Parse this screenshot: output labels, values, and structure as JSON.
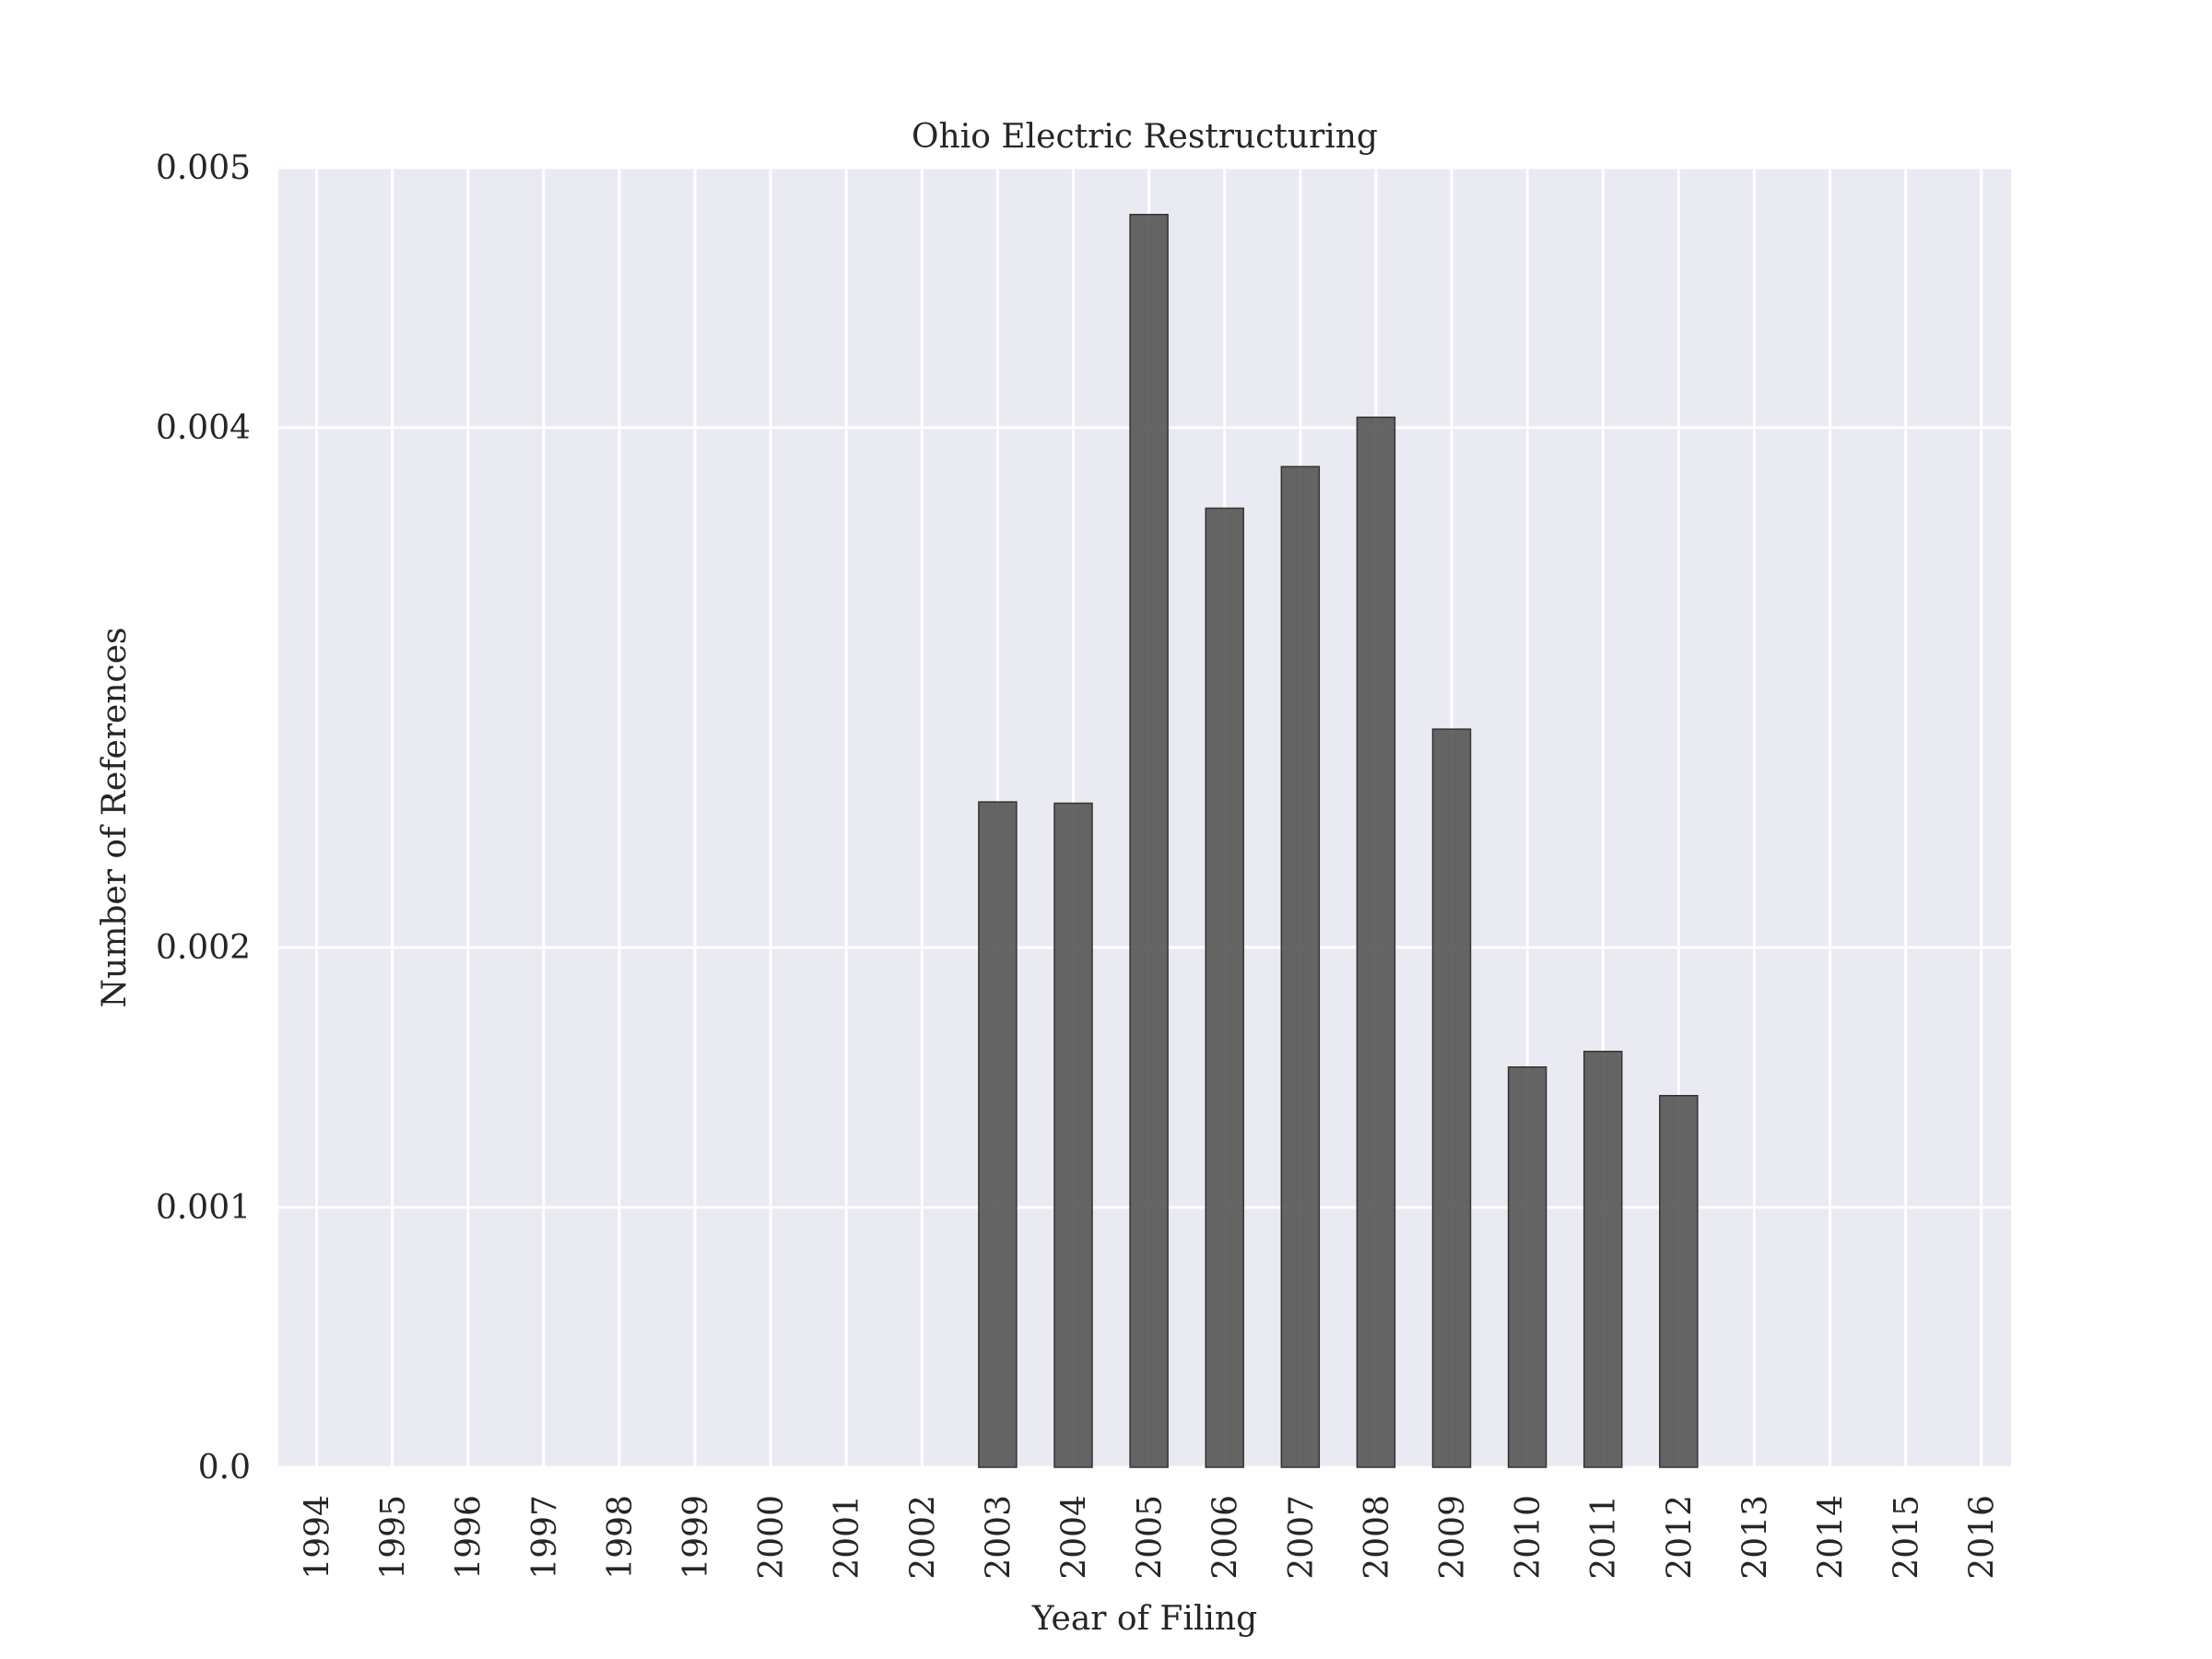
{
  "chart_data": {
    "type": "bar",
    "title": "Ohio Electric Restructuring",
    "xlabel": "Year of Filing",
    "ylabel": "Number of References",
    "categories": [
      "1994",
      "1995",
      "1996",
      "1997",
      "1998",
      "1999",
      "2000",
      "2001",
      "2002",
      "2003",
      "2004",
      "2005",
      "2006",
      "2007",
      "2008",
      "2009",
      "2010",
      "2011",
      "2012",
      "2013",
      "2014",
      "2015",
      "2016"
    ],
    "values": [
      0,
      0,
      0,
      0,
      0,
      0,
      0,
      0,
      0,
      0.00256,
      0.002555,
      0.00482,
      0.00369,
      0.00385,
      0.00404,
      0.00284,
      0.00154,
      0.0016,
      0.00143,
      0,
      0,
      0,
      0
    ],
    "yticks": [
      {
        "value": 0,
        "label": "0.0"
      },
      {
        "value": 0.001,
        "label": "0.001"
      },
      {
        "value": 0.002,
        "label": "0.002"
      },
      {
        "value": 0.004,
        "label": "0.004"
      },
      {
        "value": 0.005,
        "label": "0.005"
      }
    ],
    "ylim": [
      0,
      0.005
    ],
    "grid": true,
    "bar_color": "#555555",
    "plot_background": "#eaeaf2",
    "grid_color": "#ffffff"
  }
}
